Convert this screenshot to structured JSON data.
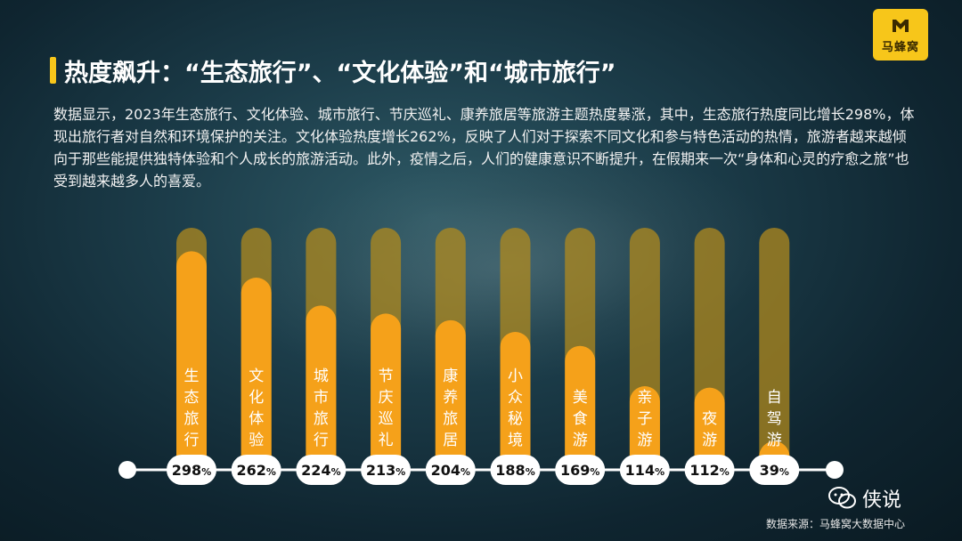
{
  "brand": {
    "logo_text": "马蜂窝",
    "logo_icon": "m-logo-icon",
    "accent_color": "#f7c61a",
    "bar_color": "#f5a11a",
    "track_color": "#b08a1e"
  },
  "header": {
    "title": "热度飙升：“生态旅行”、“文化体验”和“城市旅行”"
  },
  "description": "数据显示，2023年生态旅行、文化体验、城市旅行、节庆巡礼、康养旅居等旅游主题热度暴涨，其中，生态旅行热度同比增长298%，体现出旅行者对自然和环境保护的关注。文化体验热度增长262%，反映了人们对于探索不同文化和参与特色活动的热情，旅游者越来越倾向于那些能提供独特体验和个人成长的旅游活动。此外，疫情之后，人们的健康意识不断提升，在假期来一次“身体和心灵的疗愈之旅”也受到越来越多人的喜爱。",
  "chart_data": {
    "type": "bar",
    "categories": [
      "生态旅行",
      "文化体验",
      "城市旅行",
      "节庆巡礼",
      "康养旅居",
      "小众秘境",
      "美食游",
      "亲子游",
      "夜游",
      "自驾游"
    ],
    "values": [
      298,
      262,
      224,
      213,
      204,
      188,
      169,
      114,
      112,
      39
    ],
    "value_labels": [
      "298",
      "262",
      "224",
      "213",
      "204",
      "188",
      "169",
      "114",
      "112",
      "39"
    ],
    "value_unit": "%",
    "ylim": [
      0,
      330
    ],
    "grid": false,
    "legend": "none"
  },
  "footer": {
    "brand": "侠说",
    "brand_icon": "wechat-icon",
    "source": "数据来源：马蜂窝大数据中心"
  }
}
